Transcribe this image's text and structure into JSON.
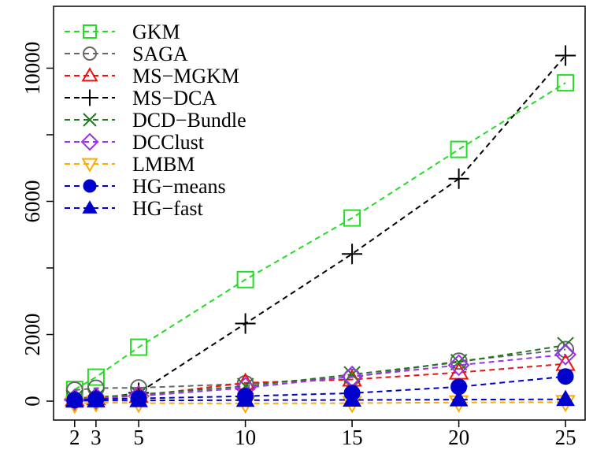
{
  "chart_data": {
    "type": "line",
    "title": "",
    "xlabel": "",
    "ylabel": "",
    "x": [
      2,
      3,
      5,
      10,
      15,
      20,
      25
    ],
    "xticks": [
      2,
      3,
      5,
      10,
      15,
      20,
      25
    ],
    "yticks": [
      0,
      2000,
      6000,
      10000
    ],
    "xlim": [
      1,
      26
    ],
    "ylim": [
      -300,
      11900
    ],
    "grid": false,
    "legend_position": "top-left",
    "series": [
      {
        "name": "GKM",
        "color": "#22dd22",
        "marker": "square-open",
        "values": [
          350,
          720,
          1620,
          3650,
          5500,
          7560,
          9560
        ]
      },
      {
        "name": "SAGA",
        "color": "#666666",
        "marker": "circle-open",
        "values": [
          330,
          390,
          400,
          520,
          720,
          1200,
          1550
        ]
      },
      {
        "name": "MS−MGKM",
        "color": "#ee1111",
        "marker": "triangle-open",
        "values": [
          60,
          90,
          160,
          550,
          650,
          860,
          1120
        ]
      },
      {
        "name": "MS−DCA",
        "color": "#000000",
        "marker": "plus",
        "values": [
          30,
          60,
          250,
          2330,
          4420,
          6680,
          10380
        ]
      },
      {
        "name": "DCD−Bundle",
        "color": "#227722",
        "marker": "x",
        "values": [
          90,
          120,
          200,
          450,
          800,
          1170,
          1680
        ]
      },
      {
        "name": "DCClust",
        "color": "#9933ee",
        "marker": "diamond-open",
        "values": [
          50,
          90,
          150,
          400,
          740,
          1080,
          1400
        ]
      },
      {
        "name": "LMBM",
        "color": "#ffaa00",
        "marker": "down-triangle-open",
        "values": [
          -80,
          -40,
          -60,
          -70,
          -60,
          -40,
          -30
        ]
      },
      {
        "name": "HG−means",
        "color": "#0000cc",
        "marker": "circle-filled",
        "values": [
          30,
          60,
          80,
          150,
          240,
          430,
          740
        ]
      },
      {
        "name": "HG−fast",
        "color": "#0000cc",
        "marker": "triangle-filled",
        "values": [
          10,
          15,
          20,
          30,
          35,
          45,
          55
        ]
      }
    ]
  }
}
